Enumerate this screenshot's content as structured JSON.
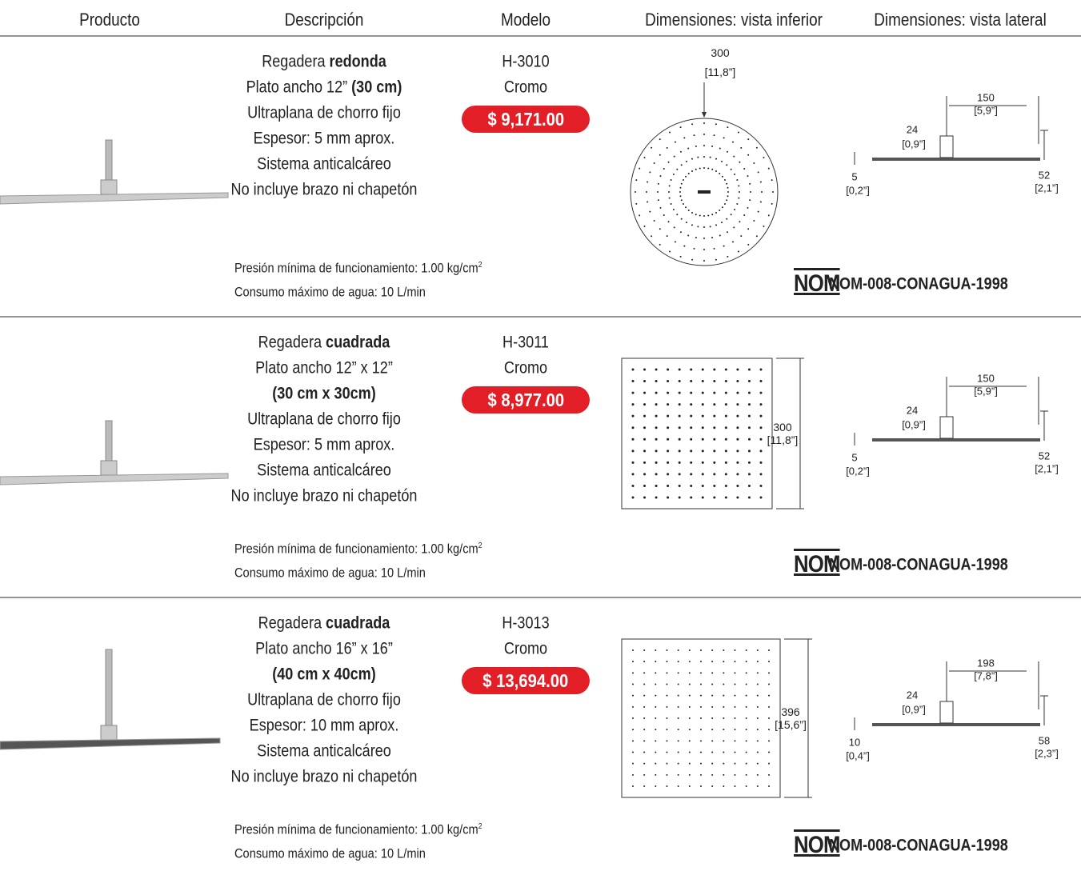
{
  "header": [
    "Producto",
    "Descripción",
    "Modelo",
    "Dimensiones: vista inferior",
    "Dimensiones: vista lateral"
  ],
  "rows": [
    {
      "description": [
        {
          "plain": "Regadera ",
          "bold": "redonda"
        },
        {
          "plain": "Plato ancho 12” ",
          "bold": "(30 cm)"
        },
        {
          "plain": "Ultraplana de chorro fijo"
        },
        {
          "plain": "Espesor: 5 mm aprox."
        },
        {
          "plain": "Sistema anticalcáreo"
        },
        {
          "plain": "No incluye brazo ni chapetón"
        }
      ],
      "model": "H-3010",
      "finish": "Cromo",
      "price": "$ 9,171.00",
      "bottom_view": {
        "shape": "round",
        "size": "300",
        "size_in": "[11,8”]"
      },
      "side_view": {
        "width": "150",
        "width_in": "[5,9”]",
        "stem": "24",
        "stem_in": "[0,9”]",
        "thickness": "5",
        "thickness_in": "[0,2”]",
        "height": "52",
        "height_in": "[2,1”]"
      },
      "pressure": {
        "text": "Presión mínima de funcionamiento: 1.00 kg/cm",
        "sup": "2"
      },
      "consumption": "Consumo máximo de agua: 10 L/min",
      "nom_logo": "NOM",
      "nom": "NOM-008-CONAGUA-1998"
    },
    {
      "description": [
        {
          "plain": "Regadera ",
          "bold": "cuadrada"
        },
        {
          "plain": "Plato ancho 12” x 12”"
        },
        {
          "bold": "(30 cm x 30cm)"
        },
        {
          "plain": "Ultraplana de chorro fijo"
        },
        {
          "plain": "Espesor: 5 mm aprox."
        },
        {
          "plain": "Sistema anticalcáreo"
        },
        {
          "plain": "No incluye brazo ni chapetón"
        }
      ],
      "model": "H-3011",
      "finish": "Cromo",
      "price": "$ 8,977.00",
      "bottom_view": {
        "shape": "square",
        "size": "300",
        "size_in": "[11,8”]"
      },
      "side_view": {
        "width": "150",
        "width_in": "[5,9”]",
        "stem": "24",
        "stem_in": "[0,9”]",
        "thickness": "5",
        "thickness_in": "[0,2”]",
        "height": "52",
        "height_in": "[2,1”]"
      },
      "pressure": {
        "text": "Presión mínima de funcionamiento: 1.00 kg/cm",
        "sup": "2"
      },
      "consumption": "Consumo máximo de agua: 10 L/min",
      "nom_logo": "NOM",
      "nom": "NOM-008-CONAGUA-1998"
    },
    {
      "description": [
        {
          "plain": "Regadera ",
          "bold": "cuadrada"
        },
        {
          "plain": "Plato ancho 16” x 16”"
        },
        {
          "bold": "(40 cm x 40cm)"
        },
        {
          "plain": "Ultraplana de chorro fijo"
        },
        {
          "plain": "Espesor: 10 mm aprox."
        },
        {
          "plain": "Sistema anticalcáreo"
        },
        {
          "plain": "No incluye brazo ni chapetón"
        }
      ],
      "model": "H-3013",
      "finish": "Cromo",
      "price": "$ 13,694.00",
      "bottom_view": {
        "shape": "square",
        "size": "396",
        "size_in": "[15,6”]"
      },
      "side_view": {
        "width": "198",
        "width_in": "[7,8”]",
        "stem": "24",
        "stem_in": "[0,9”]",
        "thickness": "10",
        "thickness_in": "[0,4”]",
        "height": "58",
        "height_in": "[2,3”]"
      },
      "pressure": {
        "text": "Presión mínima de funcionamiento: 1.00 kg/cm",
        "sup": "2"
      },
      "consumption": "Consumo máximo de agua: 10 L/min",
      "nom_logo": "NOM",
      "nom": "NOM-008-CONAGUA-1998"
    }
  ]
}
